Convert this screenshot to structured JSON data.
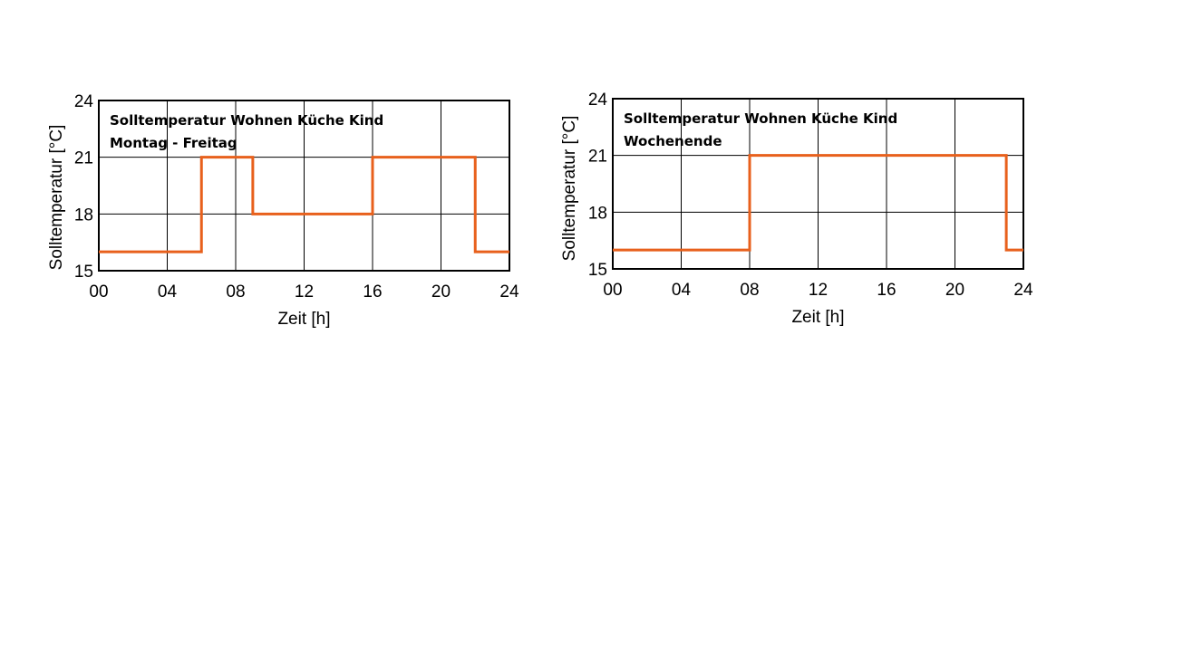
{
  "chart_data": [
    {
      "type": "line",
      "step": true,
      "annotation_lines": [
        "Solltemperatur Wohnen Küche Kind",
        "Montag - Freitag"
      ],
      "xlabel": "Zeit [h]",
      "ylabel": "Solltemperatur [°C]",
      "xlim": [
        0,
        24
      ],
      "ylim": [
        15,
        24
      ],
      "x_ticks": [
        0,
        4,
        8,
        12,
        16,
        20,
        24
      ],
      "x_tick_labels": [
        "00",
        "04",
        "08",
        "12",
        "16",
        "20",
        "24"
      ],
      "y_ticks": [
        15,
        18,
        21,
        24
      ],
      "y_tick_labels": [
        "15",
        "18",
        "21",
        "24"
      ],
      "grid": true,
      "color": "#e8601c",
      "series": [
        {
          "x": [
            0,
            6,
            6,
            9,
            9,
            16,
            16,
            22,
            22,
            24
          ],
          "y": [
            16,
            16,
            21,
            21,
            18,
            18,
            21,
            21,
            16,
            16
          ]
        }
      ]
    },
    {
      "type": "line",
      "step": true,
      "annotation_lines": [
        "Solltemperatur Wohnen Küche Kind",
        "Wochenende"
      ],
      "xlabel": "Zeit [h]",
      "ylabel": "Solltemperatur [°C]",
      "xlim": [
        0,
        24
      ],
      "ylim": [
        15,
        24
      ],
      "x_ticks": [
        0,
        4,
        8,
        12,
        16,
        20,
        24
      ],
      "x_tick_labels": [
        "00",
        "04",
        "08",
        "12",
        "16",
        "20",
        "24"
      ],
      "y_ticks": [
        15,
        18,
        21,
        24
      ],
      "y_tick_labels": [
        "15",
        "18",
        "21",
        "24"
      ],
      "grid": true,
      "color": "#e8601c",
      "series": [
        {
          "x": [
            0,
            8,
            8,
            23,
            23,
            24
          ],
          "y": [
            16,
            16,
            21,
            21,
            16,
            16
          ]
        }
      ]
    }
  ]
}
